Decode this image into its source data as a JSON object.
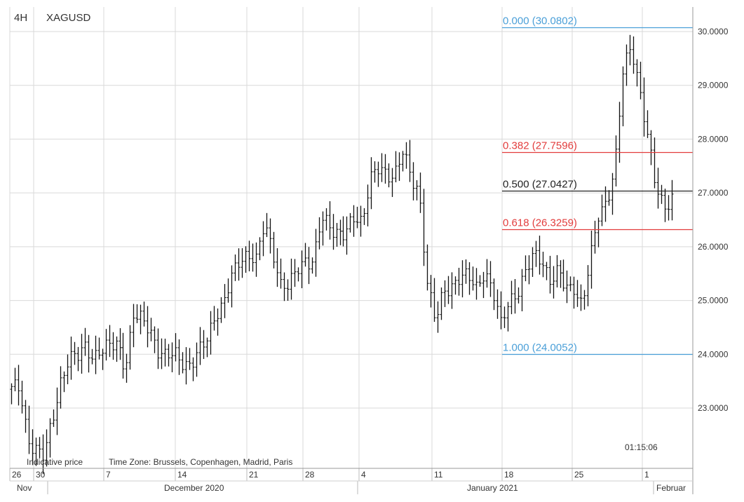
{
  "header": {
    "timeframe": "4H",
    "symbol": "XAGUSD"
  },
  "footer": {
    "indicative": "Indicative price",
    "timezone": "Time Zone: Brussels, Copenhagen, Madrid, Paris",
    "countdown": "01:15:06"
  },
  "colors": {
    "fib_blue": "#4a9fd8",
    "fib_red": "#e23c3c",
    "fib_black": "#222222",
    "bar": "#111111",
    "grid": "#d9d9d9"
  },
  "chart_data": {
    "type": "ohlc",
    "timeframe": "4H",
    "symbol": "XAGUSD",
    "yaxis": {
      "min": 22.0,
      "max": 30.3,
      "ticks": [
        "23.0000",
        "24.0000",
        "25.0000",
        "26.0000",
        "27.0000",
        "28.0000",
        "29.0000",
        "30.0000"
      ]
    },
    "x_day_ticks": [
      "26",
      "30",
      "7",
      "14",
      "21",
      "28",
      "4",
      "11",
      "18",
      "25",
      "1"
    ],
    "x_month_labels": [
      "Nov",
      "December 2020",
      "January 2021",
      "Februar"
    ],
    "fibonacci": [
      {
        "label": "0.000 (30.0802)",
        "level": 0.0,
        "price": 30.0802,
        "color": "#4a9fd8"
      },
      {
        "label": "0.382 (27.7596)",
        "level": 0.382,
        "price": 27.7596,
        "color": "#e23c3c"
      },
      {
        "label": "0.500 (27.0427)",
        "level": 0.5,
        "price": 27.0427,
        "color": "#222222"
      },
      {
        "label": "0.618 (26.3259)",
        "level": 0.618,
        "price": 26.3259,
        "color": "#e23c3c"
      },
      {
        "label": "1.000 (24.0052)",
        "level": 1.0,
        "price": 24.0052,
        "color": "#4a9fd8"
      }
    ],
    "price_path": [
      23.4,
      23.3,
      22.4,
      22.3,
      22.1,
      22.7,
      23.5,
      24.0,
      23.9,
      24.1,
      24.0,
      24.1,
      24.1,
      24.2,
      23.8,
      24.7,
      24.6,
      24.5,
      24.1,
      23.9,
      24.0,
      23.9,
      23.8,
      24.0,
      24.3,
      24.8,
      24.9,
      25.4,
      25.8,
      25.9,
      25.7,
      26.4,
      26.0,
      25.3,
      25.2,
      25.6,
      25.8,
      25.7,
      26.5,
      26.4,
      26.3,
      26.2,
      26.5,
      26.5,
      27.3,
      27.4,
      27.3,
      27.4,
      27.8,
      27.2,
      27.0,
      25.4,
      24.6,
      25.1,
      25.3,
      25.5,
      25.4,
      25.2,
      25.6,
      25.2,
      24.5,
      25.0,
      25.2,
      25.5,
      25.8,
      25.8,
      25.4,
      25.5,
      25.2,
      25.3,
      24.9,
      25.7,
      26.6,
      26.9,
      27.4,
      29.2,
      29.8,
      29.0,
      28.0,
      27.1,
      26.8,
      26.9
    ]
  }
}
